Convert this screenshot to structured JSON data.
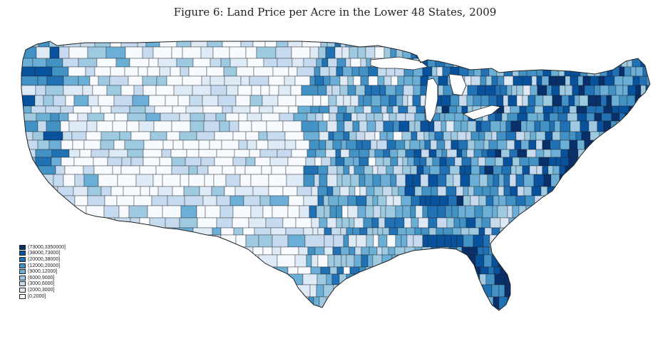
{
  "title": "Figure 6: Land Price per Acre in the Lower 48 States, 2009",
  "legend": {
    "items": [
      {
        "label": "(73000,3350000]",
        "color": "#08306b"
      },
      {
        "label": "(38000,73000]",
        "color": "#08519c"
      },
      {
        "label": "(20000,38000]",
        "color": "#2171b5"
      },
      {
        "label": "(12000,20000]",
        "color": "#4292c6"
      },
      {
        "label": "(9000,12000]",
        "color": "#6baed6"
      },
      {
        "label": "(6000,9000]",
        "color": "#9ecae1"
      },
      {
        "label": "(3000,6000]",
        "color": "#c6dbef"
      },
      {
        "label": "(2000,3000]",
        "color": "#deebf7"
      },
      {
        "label": "[0,2000]",
        "color": "#f7fbff"
      }
    ]
  },
  "border_color": "#222222"
}
